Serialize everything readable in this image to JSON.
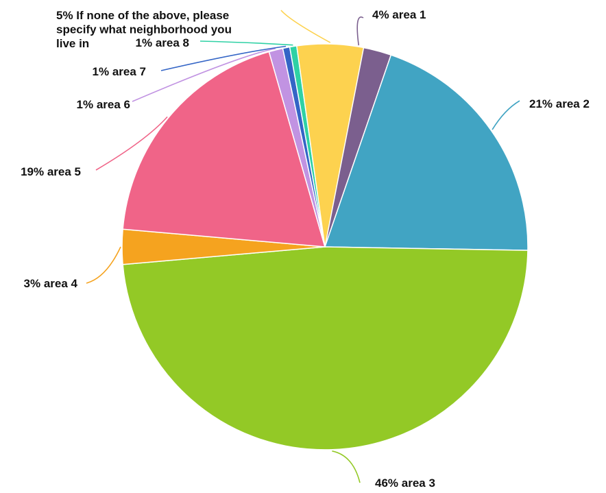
{
  "chart_data": {
    "type": "pie",
    "start_angle": "top, clockwise",
    "legend": "none",
    "slices": [
      {
        "name": "area 1",
        "value": 4,
        "label": "4% area 1",
        "color": "#7B5F8E"
      },
      {
        "name": "area 2",
        "value": 21,
        "label": "21% area 2",
        "color": "#41A4C3"
      },
      {
        "name": "area 3",
        "value": 46,
        "label": "46% area 3",
        "color": "#93C926"
      },
      {
        "name": "area 4",
        "value": 3,
        "label": "3% area 4",
        "color": "#F5A31F"
      },
      {
        "name": "area 5",
        "value": 19,
        "label": "19% area 5",
        "color": "#F06488"
      },
      {
        "name": "area 6",
        "value": 1,
        "label": "1% area 6",
        "color": "#C193E2"
      },
      {
        "name": "area 7",
        "value": 1,
        "label": "1% area 7",
        "color": "#3465C6"
      },
      {
        "name": "area 8",
        "value": 1,
        "label": "1% area 8",
        "color": "#2FD1A5"
      },
      {
        "name": "If none of the above, please specify what neighborhood you live in",
        "value": 5,
        "label_lines": [
          "5% If none of the above, please",
          "specify what neighborhood you",
          "live in"
        ],
        "color": "#FDD24F"
      }
    ]
  }
}
